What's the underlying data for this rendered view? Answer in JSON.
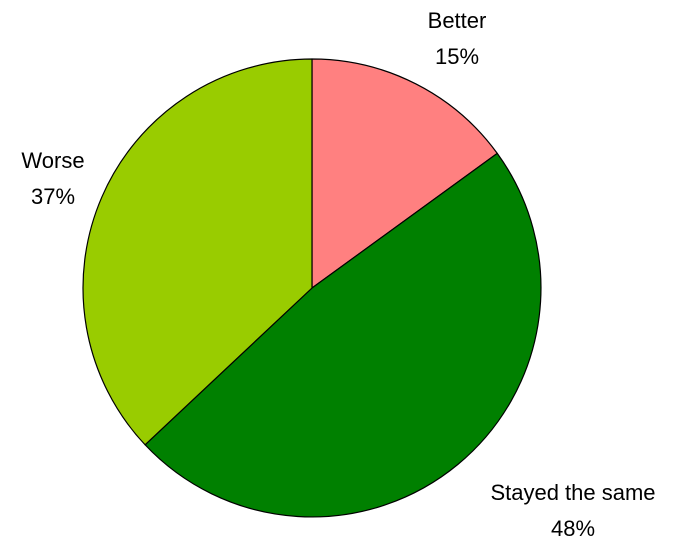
{
  "chart_data": {
    "type": "pie",
    "start_angle_deg": 0,
    "direction": "clockwise",
    "slices": [
      {
        "label": "Better",
        "percent_label": "15%",
        "value": 15,
        "color": "#ff8080"
      },
      {
        "label": "Stayed the same",
        "percent_label": "48%",
        "value": 48,
        "color": "#008000"
      },
      {
        "label": "Worse",
        "percent_label": "37%",
        "value": 37,
        "color": "#99cc00"
      }
    ]
  }
}
